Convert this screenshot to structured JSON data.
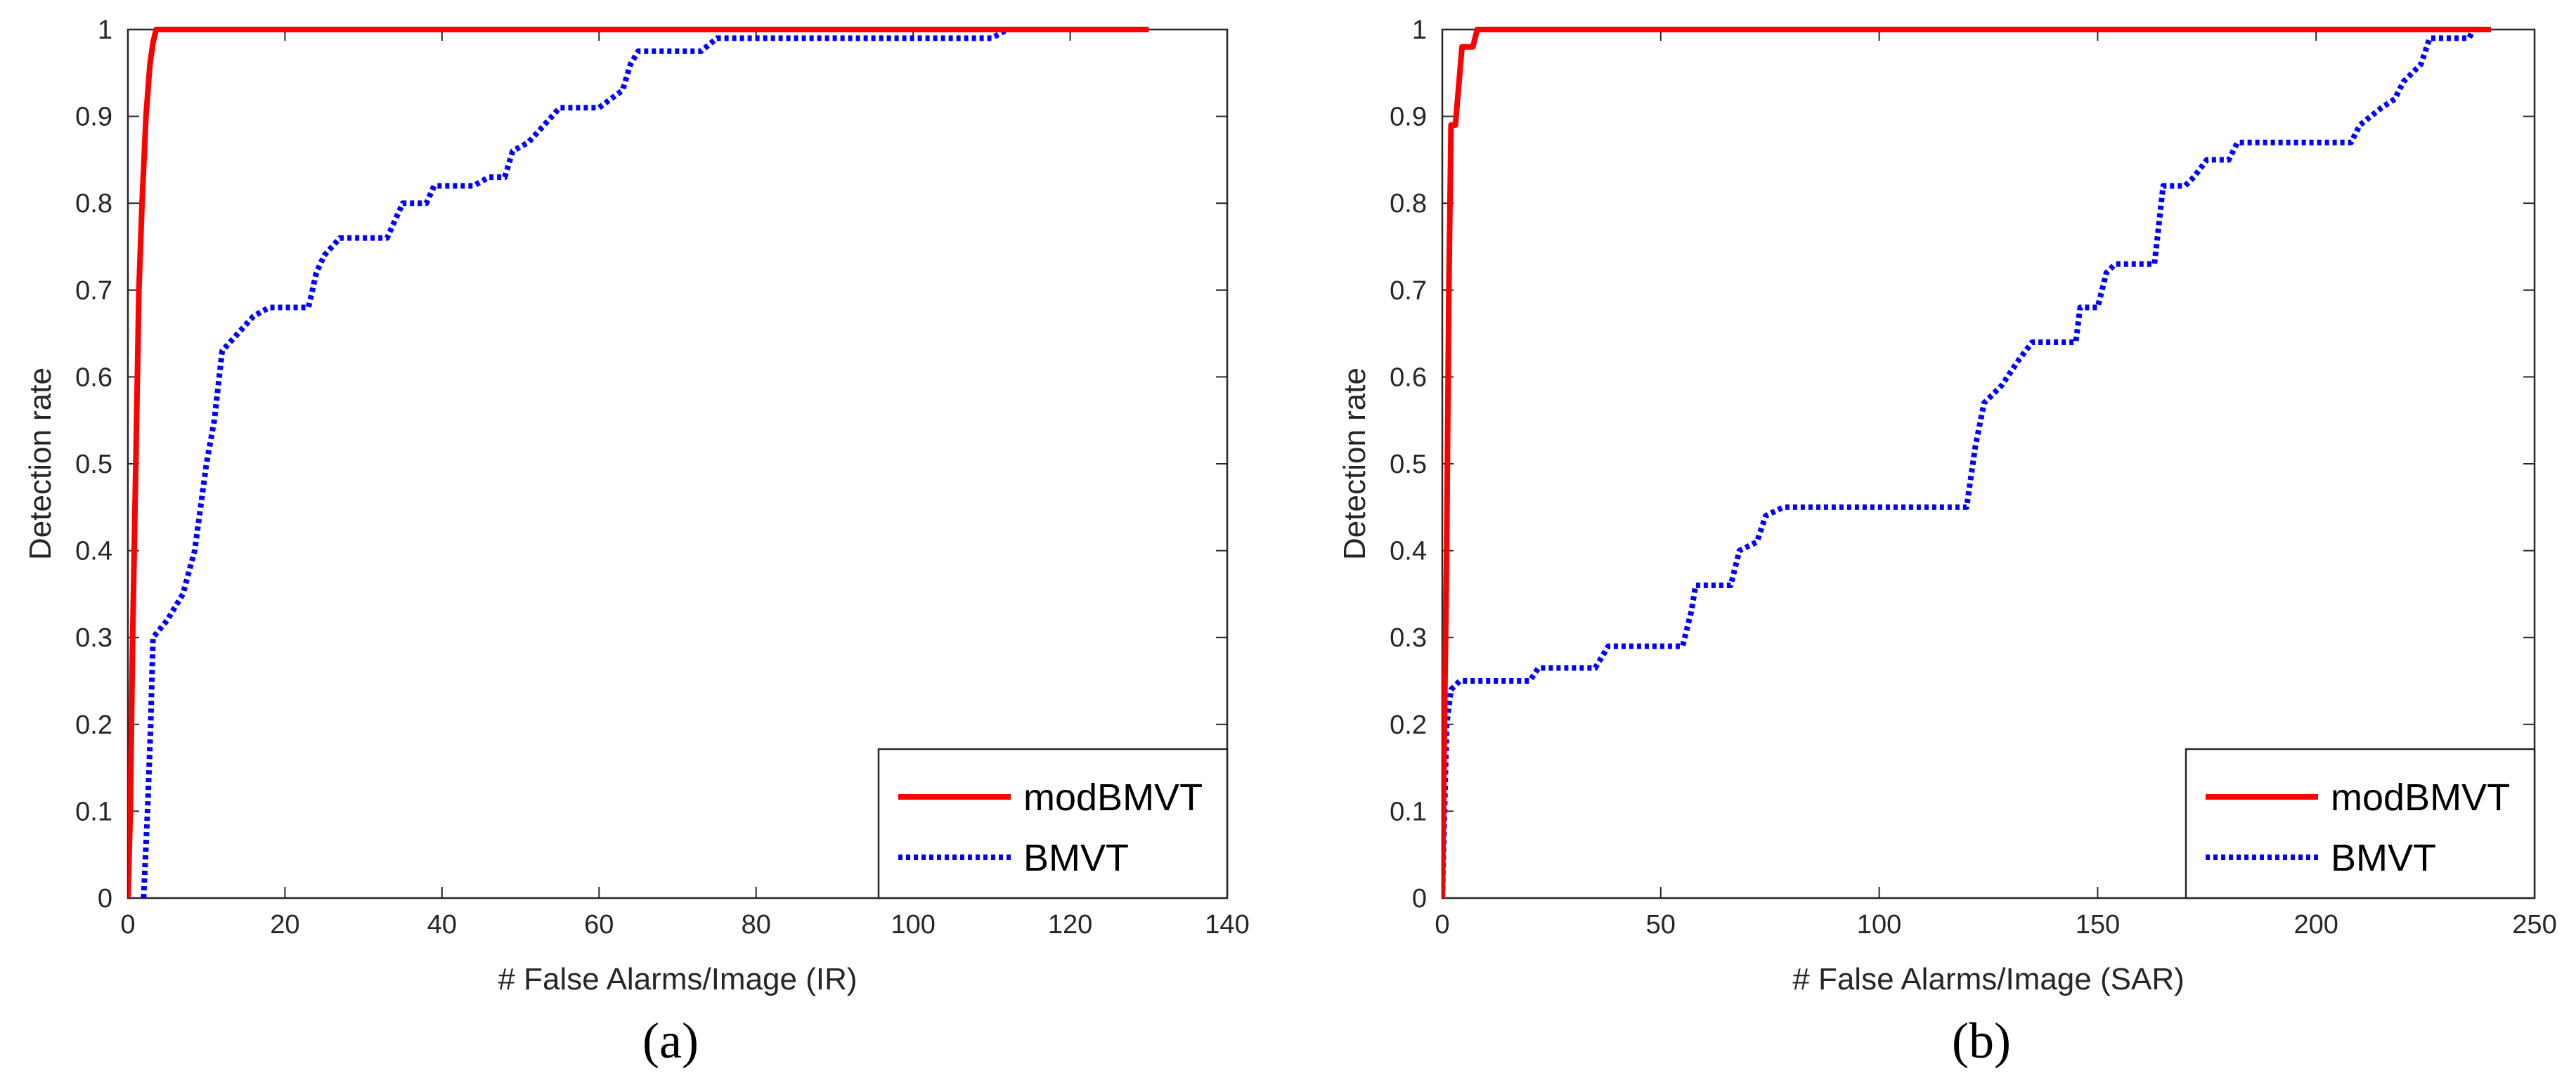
{
  "chart_data": [
    {
      "type": "line",
      "caption": "(a)",
      "xlabel": "# False Alarms/Image (IR)",
      "ylabel": "Detection rate",
      "xlim": [
        0,
        140
      ],
      "ylim": [
        0,
        1
      ],
      "xticks": [
        0,
        20,
        40,
        60,
        80,
        100,
        120,
        140
      ],
      "yticks": [
        0,
        0.1,
        0.2,
        0.3,
        0.4,
        0.5,
        0.6,
        0.7,
        0.8,
        0.9,
        1
      ],
      "grid": false,
      "legend_position": "bottom-right",
      "series": [
        {
          "name": "modBMVT",
          "color": "#ff0000",
          "style": "solid",
          "points": [
            [
              0,
              0
            ],
            [
              0.3,
              0.1
            ],
            [
              0.6,
              0.3
            ],
            [
              1.0,
              0.5
            ],
            [
              1.4,
              0.7
            ],
            [
              1.8,
              0.8
            ],
            [
              2.3,
              0.9
            ],
            [
              2.8,
              0.96
            ],
            [
              3.2,
              0.985
            ],
            [
              3.6,
              1.0
            ],
            [
              130,
              1.0
            ]
          ]
        },
        {
          "name": "BMVT",
          "color": "#0000ff",
          "style": "dotted",
          "points": [
            [
              2,
              0
            ],
            [
              2.5,
              0.1
            ],
            [
              2.9,
              0.2
            ],
            [
              3.2,
              0.3
            ],
            [
              5,
              0.32
            ],
            [
              7,
              0.35
            ],
            [
              8.5,
              0.4
            ],
            [
              10,
              0.5
            ],
            [
              11,
              0.55
            ],
            [
              12,
              0.63
            ],
            [
              14,
              0.65
            ],
            [
              16,
              0.67
            ],
            [
              18,
              0.68
            ],
            [
              23,
              0.68
            ],
            [
              24,
              0.72
            ],
            [
              25,
              0.74
            ],
            [
              27,
              0.76
            ],
            [
              33,
              0.76
            ],
            [
              34,
              0.78
            ],
            [
              35,
              0.8
            ],
            [
              38,
              0.8
            ],
            [
              39,
              0.82
            ],
            [
              44,
              0.82
            ],
            [
              46,
              0.83
            ],
            [
              48,
              0.83
            ],
            [
              49,
              0.86
            ],
            [
              51,
              0.87
            ],
            [
              53,
              0.89
            ],
            [
              55,
              0.91
            ],
            [
              60,
              0.91
            ],
            [
              63,
              0.93
            ],
            [
              64,
              0.96
            ],
            [
              65,
              0.975
            ],
            [
              73,
              0.975
            ],
            [
              75,
              0.99
            ],
            [
              110,
              0.99
            ],
            [
              112,
              1.0
            ],
            [
              130,
              1.0
            ]
          ]
        }
      ]
    },
    {
      "type": "line",
      "caption": "(b)",
      "xlabel": "# False Alarms/Image (SAR)",
      "ylabel": "Detection rate",
      "xlim": [
        0,
        250
      ],
      "ylim": [
        0,
        1
      ],
      "xticks": [
        0,
        50,
        100,
        150,
        200,
        250
      ],
      "yticks": [
        0,
        0.1,
        0.2,
        0.3,
        0.4,
        0.5,
        0.6,
        0.7,
        0.8,
        0.9,
        1
      ],
      "grid": false,
      "legend_position": "bottom-right",
      "series": [
        {
          "name": "modBMVT",
          "color": "#ff0000",
          "style": "solid",
          "points": [
            [
              0,
              0
            ],
            [
              0.5,
              0.2
            ],
            [
              1,
              0.4
            ],
            [
              1.5,
              0.7
            ],
            [
              2,
              0.89
            ],
            [
              3,
              0.89
            ],
            [
              4,
              0.95
            ],
            [
              4.5,
              0.98
            ],
            [
              7,
              0.98
            ],
            [
              8,
              1.0
            ],
            [
              240,
              1.0
            ]
          ]
        },
        {
          "name": "BMVT",
          "color": "#0000ff",
          "style": "dotted",
          "points": [
            [
              0,
              0
            ],
            [
              0.5,
              0.1
            ],
            [
              1,
              0.2
            ],
            [
              2,
              0.24
            ],
            [
              4,
              0.25
            ],
            [
              20,
              0.25
            ],
            [
              22,
              0.265
            ],
            [
              35,
              0.265
            ],
            [
              38,
              0.29
            ],
            [
              55,
              0.29
            ],
            [
              57,
              0.33
            ],
            [
              58,
              0.36
            ],
            [
              66,
              0.36
            ],
            [
              68,
              0.4
            ],
            [
              72,
              0.41
            ],
            [
              74,
              0.44
            ],
            [
              78,
              0.45
            ],
            [
              120,
              0.45
            ],
            [
              122,
              0.52
            ],
            [
              124,
              0.57
            ],
            [
              128,
              0.59
            ],
            [
              132,
              0.62
            ],
            [
              135,
              0.64
            ],
            [
              145,
              0.64
            ],
            [
              146,
              0.68
            ],
            [
              150,
              0.68
            ],
            [
              152,
              0.72
            ],
            [
              154,
              0.73
            ],
            [
              163,
              0.73
            ],
            [
              165,
              0.82
            ],
            [
              170,
              0.82
            ],
            [
              172,
              0.83
            ],
            [
              175,
              0.85
            ],
            [
              180,
              0.85
            ],
            [
              182,
              0.87
            ],
            [
              208,
              0.87
            ],
            [
              210,
              0.89
            ],
            [
              215,
              0.91
            ],
            [
              218,
              0.92
            ],
            [
              220,
              0.94
            ],
            [
              224,
              0.96
            ],
            [
              226,
              0.99
            ],
            [
              235,
              0.99
            ],
            [
              236,
              1.0
            ],
            [
              240,
              1.0
            ]
          ]
        }
      ]
    }
  ]
}
